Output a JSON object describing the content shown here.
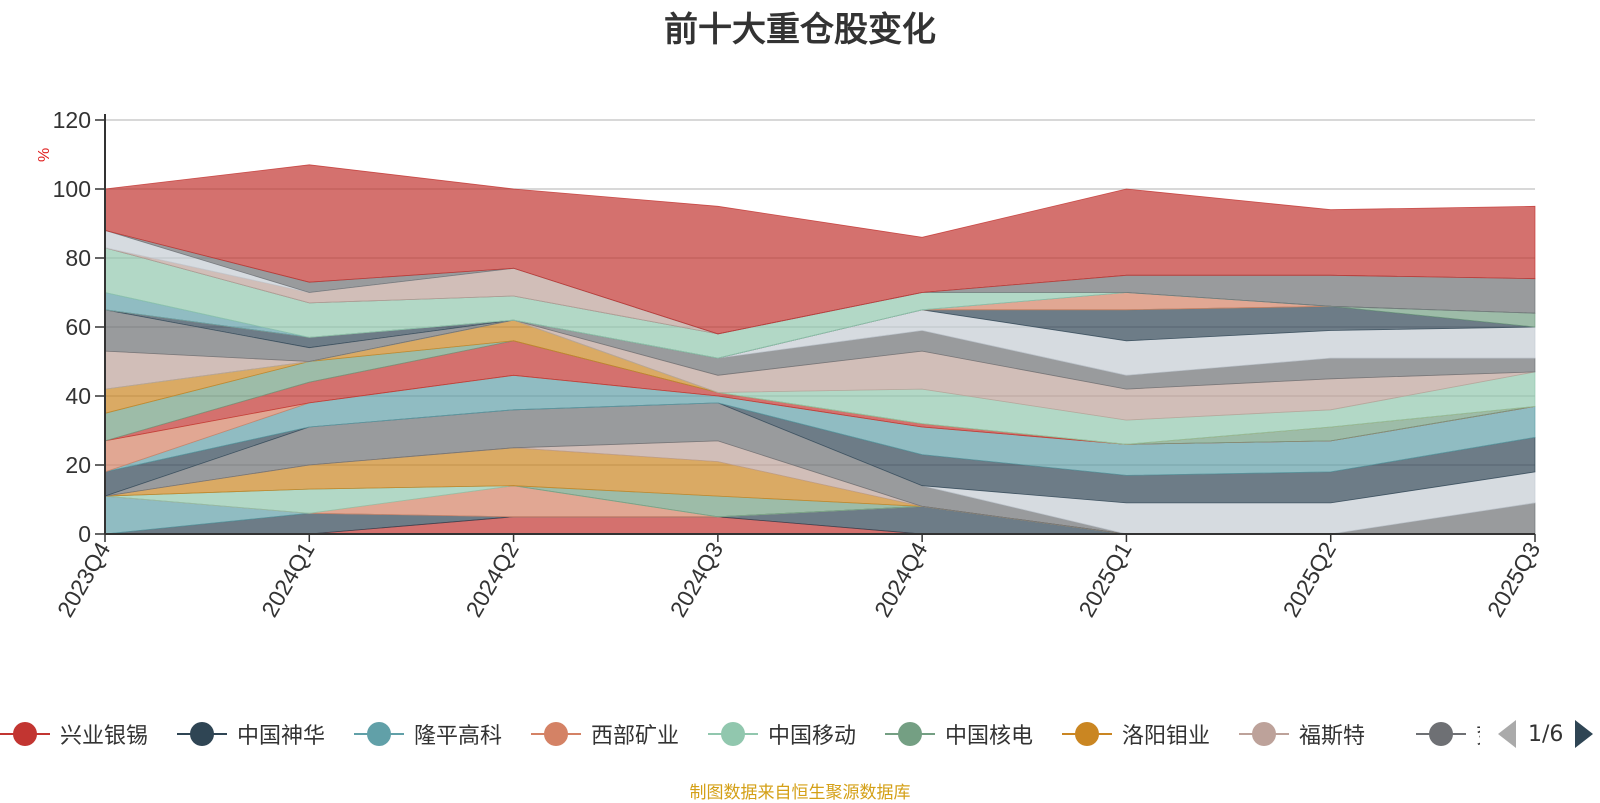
{
  "chart_data": {
    "type": "area",
    "title": "前十大重仓股变化",
    "ylabel": "%",
    "ylim": [
      0,
      120
    ],
    "yticks": [
      0,
      20,
      40,
      60,
      80,
      100,
      120
    ],
    "categories": [
      "2023Q4",
      "2024Q1",
      "2024Q2",
      "2024Q3",
      "2024Q4",
      "2025Q1",
      "2025Q2",
      "2025Q3"
    ],
    "grid": true,
    "legend_position": "bottom",
    "series": [
      {
        "name": "兴业银锡",
        "color": "#c23531",
        "values": [
          0,
          0,
          5,
          5,
          0,
          0,
          0,
          0
        ]
      },
      {
        "name": "中国神华",
        "color": "#2f4554",
        "values": [
          0,
          6,
          0,
          0,
          8,
          0,
          0,
          0
        ]
      },
      {
        "name": "隆平高科",
        "color": "#61a0a8",
        "values": [
          11,
          0,
          0,
          0,
          0,
          0,
          0,
          0
        ]
      },
      {
        "name": "西部矿业",
        "color": "#d48265",
        "values": [
          0,
          0,
          9,
          0,
          0,
          0,
          0,
          0
        ]
      },
      {
        "name": "中国移动",
        "color": "#91c7ae",
        "values": [
          0,
          7,
          0,
          0,
          0,
          0,
          0,
          0
        ]
      },
      {
        "name": "中国核电",
        "color": "#749f83",
        "values": [
          0,
          0,
          0,
          6,
          0,
          0,
          0,
          0
        ]
      },
      {
        "name": "洛阳钼业",
        "color": "#ca8622",
        "values": [
          0,
          7,
          11,
          10,
          0,
          0,
          0,
          0
        ]
      },
      {
        "name": "福斯特",
        "color": "#bda29a",
        "values": [
          0,
          0,
          0,
          6,
          0,
          0,
          0,
          0
        ]
      },
      {
        "name": "兖矿能源",
        "color": "#6e7074",
        "values": [
          0,
          11,
          11,
          11,
          6,
          0,
          0,
          9
        ]
      },
      {
        "name": "",
        "color": "#c4ccd3",
        "values": [
          0,
          0,
          0,
          0,
          0,
          9,
          9,
          9
        ]
      },
      {
        "name": "",
        "color": "#2f4554",
        "values": [
          7,
          0,
          0,
          0,
          9,
          8,
          9,
          10
        ]
      },
      {
        "name": "",
        "color": "#61a0a8",
        "values": [
          0,
          7,
          10,
          2,
          8,
          9,
          9,
          9
        ]
      },
      {
        "name": "",
        "color": "#d48265",
        "values": [
          9,
          0,
          0,
          0,
          0,
          0,
          0,
          0
        ]
      },
      {
        "name": "",
        "color": "#c23531",
        "values": [
          0,
          6,
          10,
          1,
          1,
          0,
          0,
          0
        ]
      },
      {
        "name": "",
        "color": "#749f83",
        "values": [
          8,
          6,
          0,
          0,
          0,
          0,
          4,
          0
        ]
      },
      {
        "name": "",
        "color": "#ca8622",
        "values": [
          7,
          0,
          6,
          0,
          0,
          0,
          0,
          0
        ]
      },
      {
        "name": "",
        "color": "#91c7ae",
        "values": [
          0,
          0,
          0,
          0,
          10,
          7,
          5,
          10
        ]
      },
      {
        "name": "",
        "color": "#bda29a",
        "values": [
          11,
          0,
          0,
          5,
          11,
          9,
          9,
          0
        ]
      },
      {
        "name": "",
        "color": "#6e7074",
        "values": [
          12,
          4,
          0,
          5,
          6,
          4,
          6,
          4
        ]
      },
      {
        "name": "",
        "color": "#c4ccd3",
        "values": [
          0,
          0,
          0,
          0,
          6,
          10,
          8,
          9
        ]
      },
      {
        "name": "",
        "color": "#2f4554",
        "values": [
          0,
          3,
          0,
          0,
          0,
          9,
          7,
          0
        ]
      },
      {
        "name": "",
        "color": "#749f83",
        "values": [
          0,
          0,
          0,
          0,
          0,
          0,
          0,
          4
        ]
      },
      {
        "name": "",
        "color": "#d48265",
        "values": [
          0,
          0,
          0,
          0,
          0,
          5,
          0,
          0
        ]
      },
      {
        "name": "",
        "color": "#61a0a8",
        "values": [
          5,
          0,
          0,
          0,
          0,
          0,
          0,
          0
        ]
      },
      {
        "name": "",
        "color": "#91c7ae",
        "values": [
          13,
          10,
          7,
          7,
          5,
          0,
          0,
          0
        ]
      },
      {
        "name": "",
        "color": "#6e7074",
        "values": [
          0,
          0,
          0,
          0,
          0,
          5,
          9,
          10
        ]
      },
      {
        "name": "",
        "color": "#bda29a",
        "values": [
          0,
          3,
          8,
          0,
          0,
          0,
          0,
          0
        ]
      },
      {
        "name": "",
        "color": "#c4ccd3",
        "values": [
          5,
          0,
          0,
          0,
          0,
          0,
          0,
          0
        ]
      },
      {
        "name": "",
        "color": "#6e7074",
        "values": [
          0,
          3,
          0,
          0,
          0,
          0,
          0,
          0
        ]
      },
      {
        "name": "",
        "color": "#c23531",
        "values": [
          12,
          34,
          23,
          37,
          16,
          25,
          19,
          21
        ]
      }
    ]
  },
  "legend": {
    "items": [
      {
        "label": "兴业银锡",
        "color": "#c23531"
      },
      {
        "label": "中国神华",
        "color": "#2f4554"
      },
      {
        "label": "隆平高科",
        "color": "#61a0a8"
      },
      {
        "label": "西部矿业",
        "color": "#d48265"
      },
      {
        "label": "中国移动",
        "color": "#91c7ae"
      },
      {
        "label": "中国核电",
        "color": "#749f83"
      },
      {
        "label": "洛阳钼业",
        "color": "#ca8622"
      },
      {
        "label": "福斯特",
        "color": "#bda29a"
      },
      {
        "label": "兖矿能源",
        "color": "#6e7074"
      }
    ],
    "page_indicator": "1/6",
    "prev_icon": "triangle-left-icon",
    "next_icon": "triangle-right-icon"
  },
  "source": "制图数据来自恒生聚源数据库"
}
